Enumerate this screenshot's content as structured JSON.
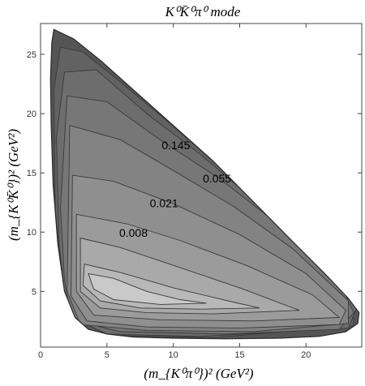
{
  "chart_data": {
    "type": "contour",
    "title": "K⁰K̄⁰π⁰ mode",
    "xlabel": "(m_{K⁰π⁰})² (GeV²)",
    "ylabel": "(m_{K⁰K̄⁰})² (GeV²)",
    "xlim": [
      0,
      24.2
    ],
    "ylim": [
      0.3,
      27.6
    ],
    "x_ticks": [
      0,
      5,
      10,
      15,
      20
    ],
    "y_ticks": [
      5,
      10,
      15,
      20,
      25
    ],
    "grid": false,
    "legend": "none",
    "contour_labels": [
      {
        "text": "0.145",
        "x": 10.2,
        "y": 17.0
      },
      {
        "text": "0.055",
        "x": 13.3,
        "y": 14.2
      },
      {
        "text": "0.021",
        "x": 9.3,
        "y": 12.1
      },
      {
        "text": "0.008",
        "x": 7.0,
        "y": 9.6
      }
    ],
    "boundary_vertices": [
      [
        1.0,
        27.1
      ],
      [
        2.5,
        26.3
      ],
      [
        4.5,
        24.5
      ],
      [
        7.0,
        22.0
      ],
      [
        10.0,
        19.0
      ],
      [
        13.0,
        16.0
      ],
      [
        16.0,
        12.6
      ],
      [
        19.0,
        9.2
      ],
      [
        21.5,
        6.4
      ],
      [
        23.2,
        4.4
      ],
      [
        24.0,
        3.2
      ],
      [
        23.9,
        2.3
      ],
      [
        23.0,
        1.6
      ],
      [
        21.0,
        1.2
      ],
      [
        18.0,
        1.05
      ],
      [
        14.0,
        1.0
      ],
      [
        10.0,
        1.05
      ],
      [
        7.0,
        1.15
      ],
      [
        5.0,
        1.4
      ],
      [
        3.6,
        1.8
      ],
      [
        2.6,
        2.8
      ],
      [
        1.8,
        5.0
      ],
      [
        1.3,
        9.0
      ],
      [
        0.95,
        14.0
      ],
      [
        0.8,
        19.0
      ],
      [
        0.75,
        23.0
      ],
      [
        0.85,
        26.0
      ]
    ],
    "levels": [
      {
        "shade": "#c9c9c9",
        "vertices": [
          [
            3.6,
            6.5
          ],
          [
            5.5,
            6.1
          ],
          [
            8.0,
            5.0
          ],
          [
            10.5,
            4.3
          ],
          [
            12.5,
            4.0
          ],
          [
            9.0,
            3.9
          ],
          [
            5.5,
            4.3
          ],
          [
            4.0,
            5.2
          ]
        ]
      },
      {
        "shade": "#b8b8b8",
        "vertices": [
          [
            3.3,
            7.3
          ],
          [
            6.0,
            6.6
          ],
          [
            10.0,
            5.3
          ],
          [
            14.5,
            4.1
          ],
          [
            16.5,
            3.6
          ],
          [
            12.0,
            3.5
          ],
          [
            7.5,
            3.6
          ],
          [
            4.5,
            4.2
          ],
          [
            3.2,
            5.5
          ]
        ]
      },
      {
        "shade": "#a9a9a9",
        "vertices": [
          [
            3.0,
            9.5
          ],
          [
            6.0,
            8.7
          ],
          [
            10.0,
            7.2
          ],
          [
            15.0,
            5.3
          ],
          [
            19.5,
            3.4
          ],
          [
            13.0,
            3.1
          ],
          [
            8.0,
            3.2
          ],
          [
            4.5,
            3.6
          ],
          [
            3.0,
            5.0
          ]
        ]
      },
      {
        "shade": "#9b9b9b",
        "vertices": [
          [
            2.7,
            11.5
          ],
          [
            6.5,
            10.7
          ],
          [
            10.5,
            9.3
          ],
          [
            15.5,
            7.2
          ],
          [
            20.5,
            4.7
          ],
          [
            22.5,
            2.8
          ],
          [
            16.0,
            2.5
          ],
          [
            9.0,
            2.6
          ],
          [
            4.0,
            3.0
          ],
          [
            2.7,
            5.0
          ]
        ]
      },
      {
        "shade": "#8f8f8f",
        "vertices": [
          [
            2.4,
            14.8
          ],
          [
            5.5,
            14.3
          ],
          [
            10.0,
            12.4
          ],
          [
            15.0,
            9.8
          ],
          [
            20.0,
            6.5
          ],
          [
            23.0,
            3.4
          ],
          [
            22.5,
            2.2
          ],
          [
            15.0,
            1.9
          ],
          [
            8.0,
            2.0
          ],
          [
            3.5,
            2.5
          ],
          [
            2.3,
            4.6
          ]
        ]
      },
      {
        "shade": "#838383",
        "vertices": [
          [
            2.2,
            19.0
          ],
          [
            6.0,
            17.8
          ],
          [
            10.0,
            15.2
          ],
          [
            14.5,
            12.2
          ],
          [
            19.0,
            8.6
          ],
          [
            23.2,
            4.2
          ],
          [
            23.2,
            2.3
          ],
          [
            16.0,
            1.6
          ],
          [
            8.0,
            1.7
          ],
          [
            3.0,
            2.2
          ],
          [
            2.0,
            5.0
          ]
        ]
      },
      {
        "shade": "#777777",
        "vertices": [
          [
            2.0,
            21.5
          ],
          [
            5.0,
            21.0
          ],
          [
            9.0,
            17.8
          ],
          [
            13.5,
            14.5
          ],
          [
            18.0,
            10.6
          ],
          [
            22.5,
            5.8
          ],
          [
            23.6,
            3.2
          ],
          [
            22.5,
            1.8
          ],
          [
            14.0,
            1.4
          ],
          [
            6.0,
            1.6
          ],
          [
            2.3,
            2.6
          ],
          [
            1.8,
            6.0
          ],
          [
            1.5,
            12.0
          ]
        ]
      },
      {
        "shade": "#6d6d6d",
        "vertices": [
          [
            1.8,
            23.5
          ],
          [
            4.2,
            23.7
          ],
          [
            8.0,
            20.0
          ],
          [
            12.0,
            16.6
          ],
          [
            16.5,
            12.3
          ],
          [
            21.0,
            7.5
          ],
          [
            23.8,
            3.6
          ],
          [
            23.2,
            1.9
          ],
          [
            12.0,
            1.2
          ],
          [
            5.0,
            1.4
          ],
          [
            2.0,
            3.0
          ],
          [
            1.4,
            9.0
          ],
          [
            1.2,
            18.0
          ]
        ]
      },
      {
        "shade": "#626262",
        "vertices": [
          [
            1.5,
            25.6
          ],
          [
            3.2,
            25.2
          ],
          [
            6.0,
            22.7
          ],
          [
            9.5,
            19.4
          ],
          [
            14.0,
            15.0
          ],
          [
            19.0,
            9.8
          ],
          [
            23.5,
            4.3
          ],
          [
            23.6,
            2.1
          ],
          [
            13.0,
            1.1
          ],
          [
            5.0,
            1.3
          ],
          [
            1.8,
            3.5
          ],
          [
            1.1,
            12.0
          ],
          [
            1.0,
            22.0
          ]
        ]
      }
    ]
  }
}
